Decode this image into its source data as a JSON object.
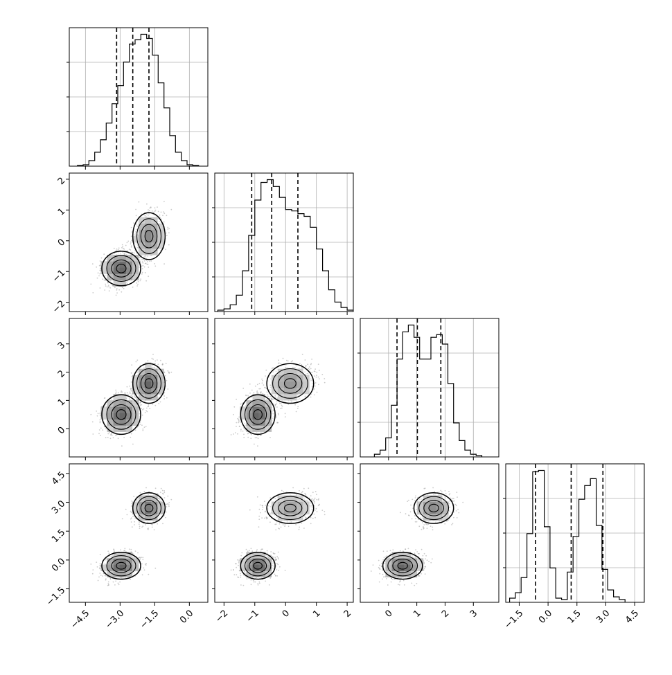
{
  "chart_data": {
    "type": "corner",
    "parameters": [
      {
        "range": [
          -5.2,
          0.8
        ],
        "ticks": [
          -4.5,
          -3.0,
          -1.5,
          0.0
        ],
        "tick_labels": [
          "−4.5",
          "−3.0",
          "−1.5",
          "0.0"
        ],
        "quantiles": [
          -3.15,
          -2.45,
          -1.75
        ],
        "hist": {
          "start": -4.85,
          "width": 0.25,
          "counts": [
            0.5,
            1,
            4,
            10,
            19,
            31,
            45,
            58,
            75,
            88,
            91,
            95,
            92,
            80,
            60,
            42,
            22,
            10,
            4,
            1,
            0.5
          ]
        }
      },
      {
        "range": [
          -2.3,
          2.2
        ],
        "ticks": [
          -2,
          -1,
          0,
          1,
          2
        ],
        "tick_labels": [
          "−2",
          "−1",
          "0",
          "1",
          "2"
        ],
        "quantiles": [
          -1.1,
          -0.45,
          0.4
        ],
        "hist": {
          "start": -2.2,
          "width": 0.2,
          "counts": [
            1,
            2,
            5,
            12,
            30,
            56,
            82,
            95,
            97,
            92,
            84,
            75,
            74,
            72,
            70,
            62,
            46,
            30,
            16,
            7,
            3,
            1
          ]
        }
      },
      {
        "range": [
          -1.0,
          3.9
        ],
        "ticks": [
          0,
          1,
          2,
          3
        ],
        "tick_labels": [
          "0",
          "1",
          "2",
          "3"
        ],
        "quantiles": [
          0.3,
          1.02,
          1.85
        ],
        "hist": {
          "start": -0.5,
          "width": 0.2,
          "counts": [
            2,
            5,
            14,
            38,
            72,
            92,
            97,
            88,
            72,
            72,
            88,
            90,
            83,
            54,
            25,
            12,
            5,
            2,
            1
          ]
        }
      },
      {
        "range": [
          -2.2,
          5.0
        ],
        "ticks": [
          -1.5,
          0.0,
          1.5,
          3.0,
          4.5
        ],
        "tick_labels": [
          "−1.5",
          "0.0",
          "1.5",
          "3.0",
          "4.5"
        ],
        "quantiles": [
          -0.65,
          1.2,
          2.85
        ],
        "hist": {
          "start": -2.0,
          "width": 0.3,
          "counts": [
            3,
            7,
            18,
            50,
            95,
            96,
            55,
            25,
            3,
            2,
            22,
            48,
            75,
            85,
            90,
            56,
            24,
            9,
            4,
            2
          ]
        }
      }
    ],
    "scatter_ticks": {
      "p2": {
        "ticks": [
          -2,
          -1,
          0,
          1,
          2
        ],
        "tick_labels": [
          "−2",
          "−1",
          "0",
          "1",
          "2"
        ]
      },
      "p3": {
        "ticks": [
          0,
          1,
          2,
          3
        ],
        "tick_labels": [
          "0",
          "1",
          "2",
          "3"
        ]
      },
      "p4": {
        "ticks": [
          -1.5,
          0.0,
          1.5,
          3.0,
          4.5
        ],
        "tick_labels": [
          "−1.5",
          "0.0",
          "1.5",
          "3.0",
          "4.5"
        ]
      }
    },
    "modes": [
      {
        "weight": 0.55,
        "mean": [
          -2.95,
          -0.9,
          0.5,
          -0.3
        ],
        "sd": [
          0.42,
          0.28,
          0.35,
          0.35
        ]
      },
      {
        "weight": 0.45,
        "mean": [
          -1.75,
          0.15,
          1.6,
          2.7
        ],
        "sd": [
          0.35,
          0.38,
          0.35,
          0.4
        ]
      }
    ],
    "grid": true,
    "contours": true,
    "histogram_line_color": "#000000",
    "scatter_color": "#808080"
  }
}
